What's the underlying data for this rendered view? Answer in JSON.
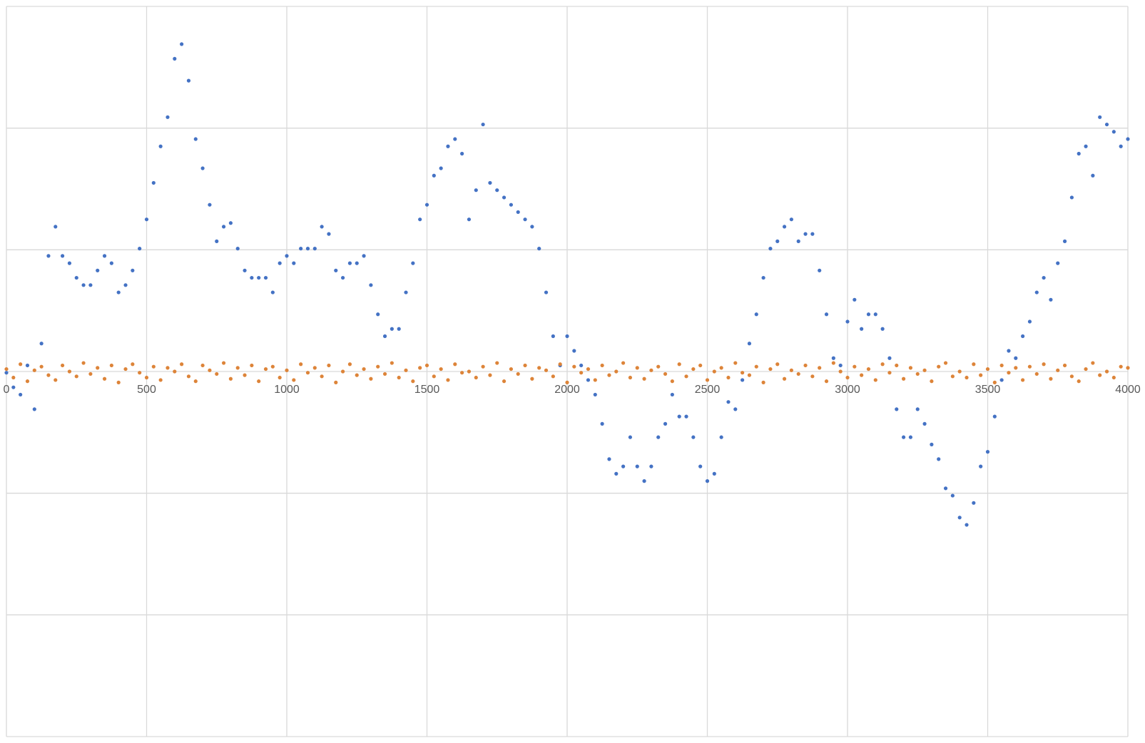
{
  "chart_data": {
    "type": "scatter",
    "xlim": [
      0,
      4000
    ],
    "xticks": [
      0,
      500,
      1000,
      1500,
      2000,
      2500,
      3000,
      3500,
      4000
    ],
    "ylim": [
      -3,
      3
    ],
    "yticks": [
      -3,
      -2,
      -1,
      0,
      1,
      2,
      3
    ],
    "ytick_labels": false,
    "grid": true,
    "x": [
      0,
      25,
      50,
      75,
      100,
      125,
      150,
      175,
      200,
      225,
      250,
      275,
      300,
      325,
      350,
      375,
      400,
      425,
      450,
      475,
      500,
      525,
      550,
      575,
      600,
      625,
      650,
      675,
      700,
      725,
      750,
      775,
      800,
      825,
      850,
      875,
      900,
      925,
      950,
      975,
      1000,
      1025,
      1050,
      1075,
      1100,
      1125,
      1150,
      1175,
      1200,
      1225,
      1250,
      1275,
      1300,
      1325,
      1350,
      1375,
      1400,
      1425,
      1450,
      1475,
      1500,
      1525,
      1550,
      1575,
      1600,
      1625,
      1650,
      1675,
      1700,
      1725,
      1750,
      1775,
      1800,
      1825,
      1850,
      1875,
      1900,
      1925,
      1950,
      1975,
      2000,
      2025,
      2050,
      2075,
      2100,
      2125,
      2150,
      2175,
      2200,
      2225,
      2250,
      2275,
      2300,
      2325,
      2350,
      2375,
      2400,
      2425,
      2450,
      2475,
      2500,
      2525,
      2550,
      2575,
      2600,
      2625,
      2650,
      2675,
      2700,
      2725,
      2750,
      2775,
      2800,
      2825,
      2850,
      2875,
      2900,
      2925,
      2950,
      2975,
      3000,
      3025,
      3050,
      3075,
      3100,
      3125,
      3150,
      3175,
      3200,
      3225,
      3250,
      3275,
      3300,
      3325,
      3350,
      3375,
      3400,
      3425,
      3450,
      3475,
      3500,
      3525,
      3550,
      3575,
      3600,
      3625,
      3650,
      3675,
      3700,
      3725,
      3750,
      3775,
      3800,
      3825,
      3850,
      3875,
      3900,
      3925,
      3950,
      3975,
      4000
    ],
    "series": [
      {
        "color": "#4472c4",
        "values": [
          -0.01,
          -0.13,
          -0.19,
          0.05,
          -0.31,
          0.23,
          0.95,
          1.19,
          0.95,
          0.89,
          0.77,
          0.71,
          0.71,
          0.83,
          0.95,
          0.89,
          0.65,
          0.71,
          0.83,
          1.01,
          1.25,
          1.55,
          1.85,
          2.09,
          2.57,
          2.69,
          2.39,
          1.91,
          1.67,
          1.37,
          1.07,
          1.19,
          1.22,
          1.01,
          0.83,
          0.77,
          0.77,
          0.77,
          0.65,
          0.89,
          0.95,
          0.89,
          1.01,
          1.01,
          1.01,
          1.19,
          1.13,
          0.83,
          0.77,
          0.89,
          0.89,
          0.95,
          0.71,
          0.47,
          0.29,
          0.35,
          0.35,
          0.65,
          0.89,
          1.25,
          1.37,
          1.61,
          1.67,
          1.85,
          1.91,
          1.79,
          1.25,
          1.49,
          2.03,
          1.55,
          1.49,
          1.43,
          1.37,
          1.31,
          1.25,
          1.19,
          1.01,
          0.65,
          0.29,
          0.05,
          0.29,
          0.17,
          0.05,
          -0.07,
          -0.19,
          -0.43,
          -0.72,
          -0.84,
          -0.78,
          -0.54,
          -0.78,
          -0.9,
          -0.78,
          -0.54,
          -0.43,
          -0.19,
          -0.37,
          -0.37,
          -0.54,
          -0.78,
          -0.9,
          -0.84,
          -0.54,
          -0.25,
          -0.31,
          -0.07,
          0.23,
          0.47,
          0.77,
          1.01,
          1.07,
          1.19,
          1.25,
          1.07,
          1.13,
          1.13,
          0.83,
          0.47,
          0.11,
          0.05,
          0.41,
          0.59,
          0.35,
          0.47,
          0.47,
          0.35,
          0.11,
          -0.31,
          -0.54,
          -0.54,
          -0.31,
          -0.43,
          -0.6,
          -0.72,
          -0.96,
          -1.02,
          -1.2,
          -1.26,
          -1.08,
          -0.78,
          -0.66,
          -0.37,
          -0.07,
          0.17,
          0.11,
          0.29,
          0.41,
          0.65,
          0.77,
          0.59,
          0.89,
          1.07,
          1.43,
          1.79,
          1.85,
          1.61,
          2.09,
          2.03,
          1.97,
          1.85,
          1.91
        ]
      },
      {
        "color": "#dd8439",
        "values": [
          0.02,
          -0.05,
          0.06,
          -0.08,
          0.01,
          0.04,
          -0.03,
          -0.07,
          0.05,
          0.0,
          -0.04,
          0.07,
          -0.02,
          0.03,
          -0.06,
          0.05,
          -0.09,
          0.02,
          0.06,
          -0.01,
          -0.05,
          0.04,
          -0.07,
          0.03,
          0.0,
          0.06,
          -0.04,
          -0.08,
          0.05,
          0.01,
          -0.02,
          0.07,
          -0.06,
          0.03,
          -0.03,
          0.05,
          -0.08,
          0.02,
          0.04,
          -0.05,
          0.01,
          -0.07,
          0.06,
          -0.01,
          0.03,
          -0.04,
          0.05,
          -0.09,
          0.0,
          0.06,
          -0.03,
          0.02,
          -0.06,
          0.04,
          -0.02,
          0.07,
          -0.05,
          0.01,
          -0.08,
          0.03,
          0.05,
          -0.04,
          0.02,
          -0.07,
          0.06,
          -0.01,
          0.0,
          -0.05,
          0.04,
          -0.03,
          0.07,
          -0.08,
          0.02,
          -0.02,
          0.05,
          -0.06,
          0.03,
          0.01,
          -0.04,
          0.06,
          -0.09,
          0.04,
          -0.01,
          0.02,
          -0.07,
          0.05,
          -0.03,
          0.0,
          0.07,
          -0.05,
          0.03,
          -0.06,
          0.01,
          0.04,
          -0.02,
          -0.08,
          0.06,
          -0.04,
          0.02,
          0.05,
          -0.07,
          0.0,
          0.03,
          -0.05,
          0.07,
          -0.01,
          -0.03,
          0.04,
          -0.09,
          0.02,
          0.06,
          -0.06,
          0.01,
          -0.02,
          0.05,
          -0.04,
          0.03,
          -0.08,
          0.07,
          0.0,
          -0.05,
          0.04,
          -0.03,
          0.02,
          -0.07,
          0.06,
          -0.01,
          0.05,
          -0.06,
          0.03,
          -0.02,
          0.01,
          -0.08,
          0.04,
          0.07,
          -0.04,
          0.0,
          -0.05,
          0.06,
          -0.03,
          0.02,
          -0.09,
          0.05,
          -0.01,
          0.03,
          -0.07,
          0.04,
          -0.02,
          0.06,
          -0.06,
          0.01,
          0.05,
          -0.04,
          -0.08,
          0.02,
          0.07,
          -0.03,
          0.0,
          -0.05,
          0.04,
          0.03
        ]
      }
    ]
  }
}
